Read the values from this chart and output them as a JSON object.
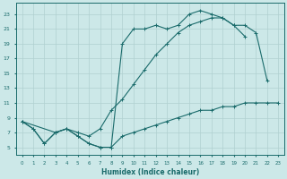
{
  "xlabel": "Humidex (Indice chaleur)",
  "xlim": [
    -0.5,
    23.5
  ],
  "ylim": [
    4,
    24.5
  ],
  "yticks": [
    5,
    7,
    9,
    11,
    13,
    15,
    17,
    19,
    21,
    23
  ],
  "xticks": [
    0,
    1,
    2,
    3,
    4,
    5,
    6,
    7,
    8,
    9,
    10,
    11,
    12,
    13,
    14,
    15,
    16,
    17,
    18,
    19,
    20,
    21,
    22,
    23
  ],
  "bg_color": "#cce8e8",
  "grid_color": "#b0d0d0",
  "line_color": "#1a6b6b",
  "line1_x": [
    0,
    1,
    2,
    3,
    4,
    5,
    6,
    7,
    8,
    9,
    10,
    11,
    12,
    13,
    14,
    15,
    16,
    17,
    18,
    19,
    20
  ],
  "line1_y": [
    8.5,
    7.5,
    5.5,
    7.0,
    7.5,
    6.5,
    5.5,
    5.0,
    5.0,
    19.0,
    21.0,
    21.0,
    21.5,
    21.0,
    21.5,
    23.0,
    23.5,
    23.0,
    22.5,
    21.5,
    20.0
  ],
  "line2_x": [
    0,
    3,
    4,
    5,
    6,
    7,
    8,
    9,
    10,
    11,
    12,
    13,
    14,
    15,
    16,
    17,
    18,
    19,
    20,
    21,
    22
  ],
  "line2_y": [
    8.5,
    7.0,
    7.5,
    7.0,
    6.5,
    7.5,
    10.0,
    11.5,
    13.5,
    15.5,
    17.5,
    19.0,
    20.5,
    21.5,
    22.0,
    22.5,
    22.5,
    21.5,
    21.5,
    20.5,
    14.0
  ],
  "line3_x": [
    0,
    1,
    2,
    3,
    4,
    5,
    6,
    7,
    8,
    9,
    10,
    11,
    12,
    13,
    14,
    15,
    16,
    17,
    18,
    19,
    20,
    21,
    22,
    23
  ],
  "line3_y": [
    8.5,
    7.5,
    5.5,
    7.0,
    7.5,
    6.5,
    5.5,
    5.0,
    5.0,
    6.5,
    7.0,
    7.5,
    8.0,
    8.5,
    9.0,
    9.5,
    10.0,
    10.0,
    10.5,
    10.5,
    11.0,
    11.0,
    11.0,
    11.0
  ]
}
